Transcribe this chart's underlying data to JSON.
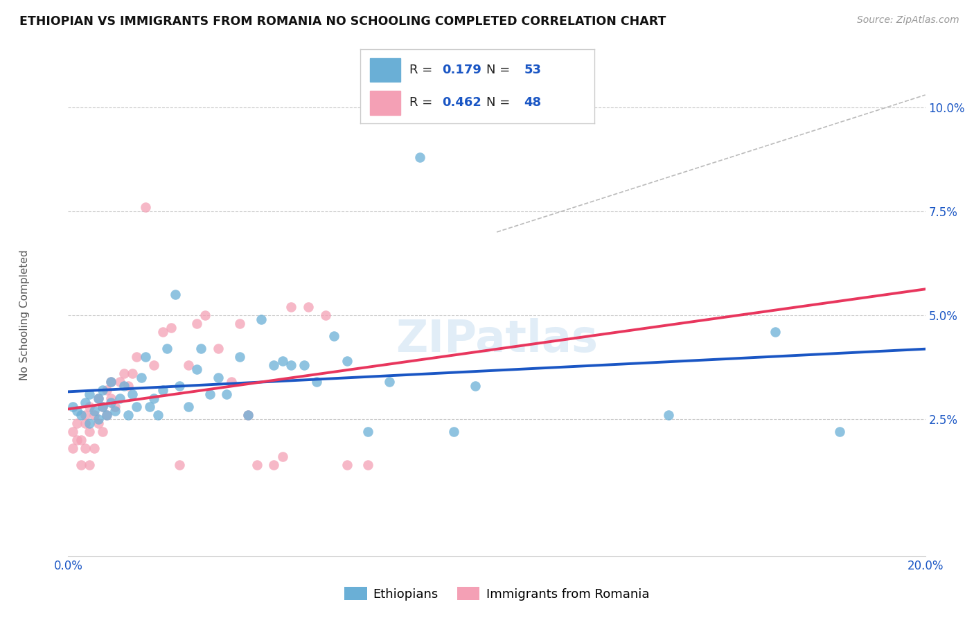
{
  "title": "ETHIOPIAN VS IMMIGRANTS FROM ROMANIA NO SCHOOLING COMPLETED CORRELATION CHART",
  "source": "Source: ZipAtlas.com",
  "ylabel": "No Schooling Completed",
  "blue_R": "0.179",
  "blue_N": "53",
  "pink_R": "0.462",
  "pink_N": "48",
  "blue_color": "#6aafd6",
  "pink_color": "#f4a0b5",
  "blue_line_color": "#1a56c4",
  "pink_line_color": "#e8365d",
  "xlim": [
    0.0,
    0.2
  ],
  "ylim": [
    -0.008,
    0.108
  ],
  "blue_points_x": [
    0.001,
    0.002,
    0.003,
    0.004,
    0.005,
    0.005,
    0.006,
    0.007,
    0.007,
    0.008,
    0.008,
    0.009,
    0.01,
    0.01,
    0.011,
    0.012,
    0.013,
    0.014,
    0.015,
    0.016,
    0.017,
    0.018,
    0.019,
    0.02,
    0.021,
    0.022,
    0.023,
    0.025,
    0.026,
    0.028,
    0.03,
    0.031,
    0.033,
    0.035,
    0.037,
    0.04,
    0.042,
    0.045,
    0.048,
    0.05,
    0.052,
    0.055,
    0.058,
    0.062,
    0.065,
    0.07,
    0.075,
    0.082,
    0.09,
    0.095,
    0.14,
    0.165,
    0.18
  ],
  "blue_points_y": [
    0.028,
    0.027,
    0.026,
    0.029,
    0.024,
    0.031,
    0.027,
    0.03,
    0.025,
    0.028,
    0.032,
    0.026,
    0.029,
    0.034,
    0.027,
    0.03,
    0.033,
    0.026,
    0.031,
    0.028,
    0.035,
    0.04,
    0.028,
    0.03,
    0.026,
    0.032,
    0.042,
    0.055,
    0.033,
    0.028,
    0.037,
    0.042,
    0.031,
    0.035,
    0.031,
    0.04,
    0.026,
    0.049,
    0.038,
    0.039,
    0.038,
    0.038,
    0.034,
    0.045,
    0.039,
    0.022,
    0.034,
    0.088,
    0.022,
    0.033,
    0.026,
    0.046,
    0.022
  ],
  "pink_points_x": [
    0.001,
    0.001,
    0.002,
    0.002,
    0.003,
    0.003,
    0.004,
    0.004,
    0.004,
    0.005,
    0.005,
    0.005,
    0.006,
    0.006,
    0.007,
    0.007,
    0.008,
    0.008,
    0.009,
    0.009,
    0.01,
    0.01,
    0.011,
    0.012,
    0.013,
    0.014,
    0.015,
    0.016,
    0.018,
    0.02,
    0.022,
    0.024,
    0.026,
    0.028,
    0.03,
    0.032,
    0.035,
    0.038,
    0.04,
    0.042,
    0.044,
    0.048,
    0.05,
    0.052,
    0.056,
    0.06,
    0.065,
    0.07
  ],
  "pink_points_y": [
    0.022,
    0.018,
    0.02,
    0.024,
    0.014,
    0.02,
    0.024,
    0.018,
    0.026,
    0.022,
    0.014,
    0.028,
    0.018,
    0.026,
    0.024,
    0.03,
    0.022,
    0.028,
    0.026,
    0.032,
    0.03,
    0.034,
    0.028,
    0.034,
    0.036,
    0.033,
    0.036,
    0.04,
    0.076,
    0.038,
    0.046,
    0.047,
    0.014,
    0.038,
    0.048,
    0.05,
    0.042,
    0.034,
    0.048,
    0.026,
    0.014,
    0.014,
    0.016,
    0.052,
    0.052,
    0.05,
    0.014,
    0.014
  ]
}
